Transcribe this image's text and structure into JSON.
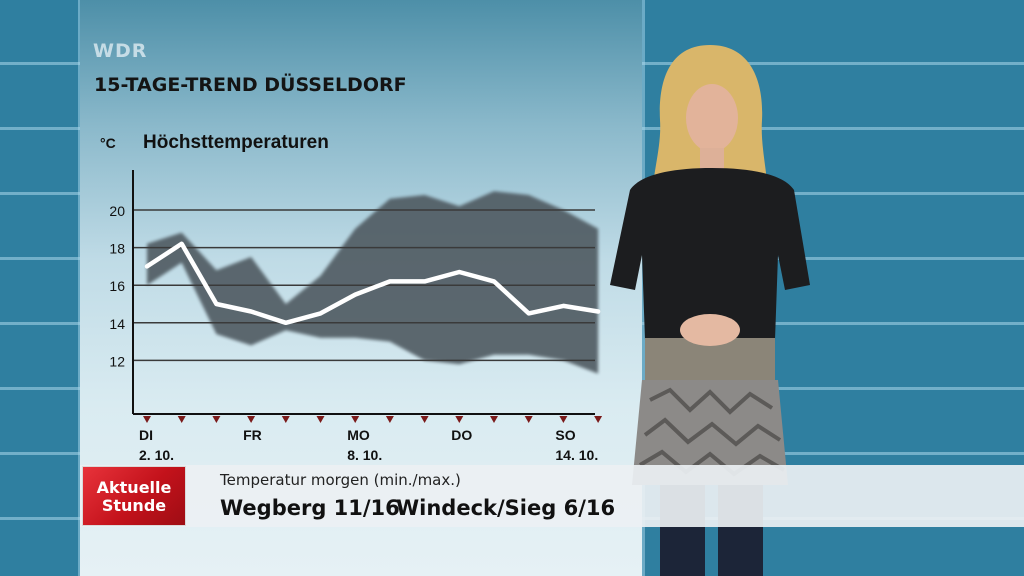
{
  "channel": "WDR",
  "title": "15-TAGE-TREND DÜSSELDORF",
  "chart_data": {
    "type": "line",
    "title": "Höchsttemperaturen",
    "unit": "°C",
    "ylim": [
      10,
      21
    ],
    "y_ticks": [
      20,
      18,
      16,
      14,
      12
    ],
    "x": [
      1,
      2,
      3,
      4,
      5,
      6,
      7,
      8,
      9,
      10,
      11,
      12,
      13,
      14
    ],
    "x_tick_labels": [
      {
        "x": 1,
        "top": "DI",
        "bottom": "2. 10."
      },
      {
        "x": 4,
        "top": "FR",
        "bottom": ""
      },
      {
        "x": 7,
        "top": "MO",
        "bottom": "8. 10."
      },
      {
        "x": 10,
        "top": "DO",
        "bottom": ""
      },
      {
        "x": 13,
        "top": "SO",
        "bottom": "14. 10."
      }
    ],
    "series": [
      {
        "values": [
          17.0,
          18.2,
          15.0,
          14.6,
          14.0,
          14.5,
          15.5,
          16.2,
          16.2,
          16.7,
          16.2,
          14.5,
          14.9,
          14.6
        ]
      }
    ],
    "band_upper": [
      18.2,
      18.8,
      16.8,
      17.5,
      15.0,
      16.5,
      19.0,
      20.6,
      20.8,
      20.2,
      21.0,
      20.8,
      20.0,
      19.0
    ],
    "band_lower": [
      16.0,
      17.2,
      13.4,
      12.8,
      13.6,
      13.2,
      13.2,
      13.0,
      12.0,
      11.8,
      12.3,
      12.3,
      12.0,
      11.3
    ]
  },
  "ticker": {
    "logo_line1": "Aktuelle",
    "logo_line2": "Stunde",
    "subtitle": "Temperatur morgen (min./max.)",
    "city1": "Wegberg 11/16",
    "city2": "Windeck/Sieg 6/16"
  },
  "colors": {
    "band": "#4f5a61",
    "line": "#ffffff",
    "grid": "#3a3a3a",
    "logo_red": "#d01c24"
  }
}
